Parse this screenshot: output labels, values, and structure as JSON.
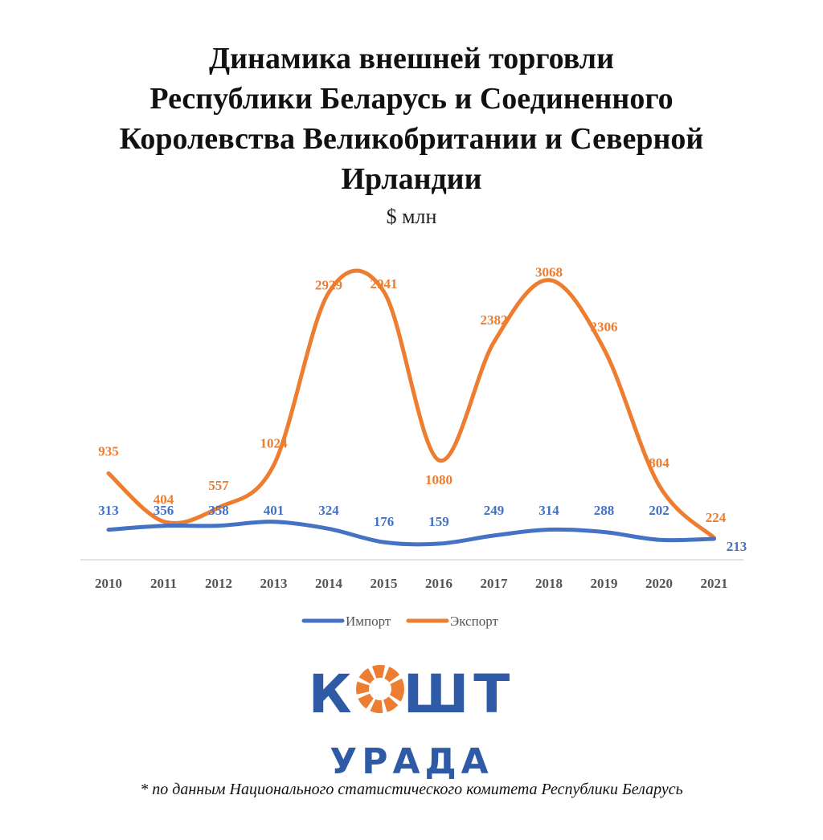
{
  "title_lines": [
    "Динамика внешней торговли",
    "Республики Беларусь и Соединенного",
    "Королевства Великобритании и Северной",
    "Ирландии"
  ],
  "unit": "$ млн",
  "logo": {
    "main_left": "К",
    "main_right": "ШТ",
    "sub": "УРАДА"
  },
  "footnote": "* по данным Национального статистического комитета Республики Беларусь",
  "colors": {
    "import": "#4472c4",
    "export": "#ed7d31",
    "logo": "#2f5aa6",
    "axis": "#d9d9d9"
  },
  "chart_data": {
    "type": "line",
    "categories": [
      "2010",
      "2011",
      "2012",
      "2013",
      "2014",
      "2015",
      "2016",
      "2017",
      "2018",
      "2019",
      "2020",
      "2021"
    ],
    "series": [
      {
        "name": "Импорт",
        "values": [
          313,
          356,
          358,
          401,
          324,
          176,
          159,
          249,
          314,
          288,
          202,
          213
        ]
      },
      {
        "name": "Экспорт",
        "values": [
          935,
          404,
          557,
          1024,
          2929,
          2941,
          1080,
          2382,
          3068,
          2306,
          804,
          224
        ]
      }
    ],
    "legend_position": "bottom",
    "grid": false,
    "smooth": true
  }
}
